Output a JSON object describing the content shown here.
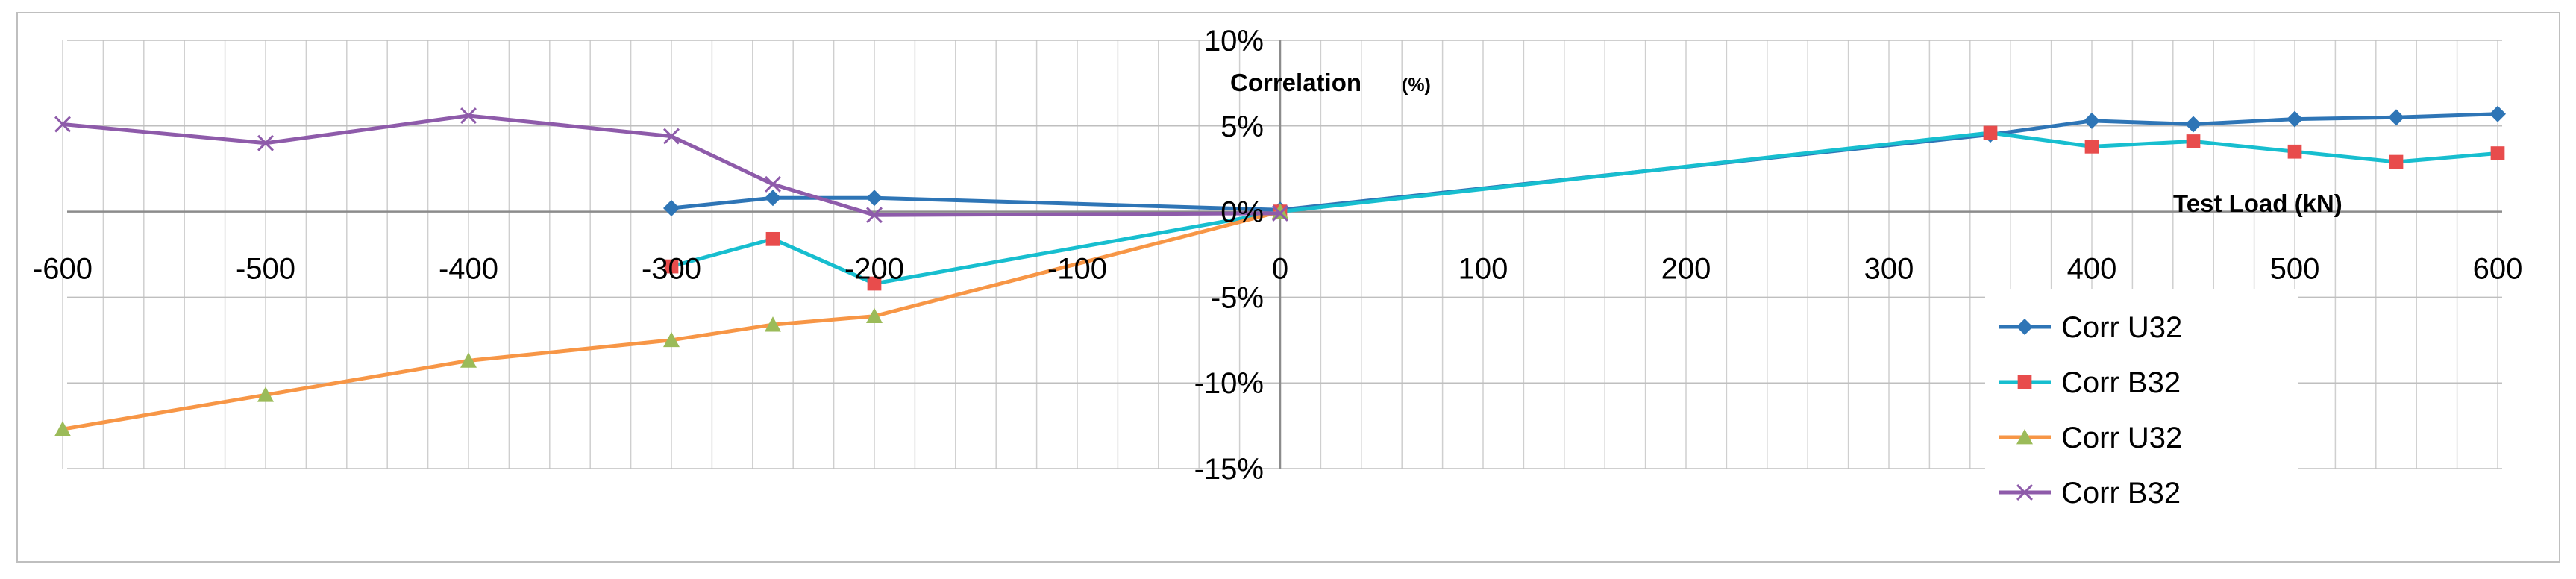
{
  "chart_data": {
    "type": "line",
    "x_axis_title": "Test Load (kN)",
    "y_axis_title": "Correlation",
    "y_axis_unit": "(%)",
    "xlim": [
      -600,
      600
    ],
    "ylim": [
      -15,
      10
    ],
    "x_ticks": [
      -600,
      -500,
      -400,
      -300,
      -200,
      -100,
      0,
      100,
      200,
      300,
      400,
      500,
      600
    ],
    "x_tick_labels": [
      "-600",
      "-500",
      "-400",
      "-300",
      "-200",
      "-100",
      "0",
      "100",
      "200",
      "300",
      "400",
      "500",
      "600"
    ],
    "y_ticks": [
      10,
      5,
      0,
      -5,
      -10,
      -15
    ],
    "y_tick_labels": [
      "10%",
      "5%",
      "0%",
      "-5%",
      "-10%",
      "-15%"
    ],
    "grid": {
      "major_x_step": 20,
      "horizontal": true
    },
    "legend_position": "bottom-right",
    "series": [
      {
        "name": "Corr U32",
        "color": "#2E75B6",
        "marker": "diamond",
        "points": [
          [
            -300,
            0.2
          ],
          [
            -250,
            0.8
          ],
          [
            -200,
            0.8
          ],
          [
            0,
            0.1
          ],
          [
            350,
            4.5
          ],
          [
            400,
            5.3
          ],
          [
            450,
            5.1
          ],
          [
            500,
            5.4
          ],
          [
            550,
            5.5
          ],
          [
            600,
            5.7
          ]
        ]
      },
      {
        "name": "Corr B32",
        "color": "#17BECF",
        "marker_color": "#E84C4C",
        "marker": "square",
        "points": [
          [
            -300,
            -3.2
          ],
          [
            -250,
            -1.6
          ],
          [
            -200,
            -4.2
          ],
          [
            0,
            0.0
          ],
          [
            350,
            4.6
          ],
          [
            400,
            3.8
          ],
          [
            450,
            4.1
          ],
          [
            500,
            3.5
          ],
          [
            550,
            2.9
          ],
          [
            600,
            3.4
          ]
        ]
      },
      {
        "name": "Corr U32",
        "color": "#F79646",
        "marker_color": "#9BBB59",
        "marker": "triangle",
        "points": [
          [
            -600,
            -12.7
          ],
          [
            -500,
            -10.7
          ],
          [
            -400,
            -8.7
          ],
          [
            -300,
            -7.5
          ],
          [
            -250,
            -6.6
          ],
          [
            -200,
            -6.1
          ],
          [
            0,
            0.0
          ]
        ]
      },
      {
        "name": "Corr B32",
        "color": "#8E5BAA",
        "marker": "x",
        "points": [
          [
            -600,
            5.1
          ],
          [
            -500,
            4.0
          ],
          [
            -400,
            5.6
          ],
          [
            -300,
            4.4
          ],
          [
            -250,
            1.6
          ],
          [
            -200,
            -0.2
          ],
          [
            0,
            -0.1
          ]
        ]
      }
    ]
  }
}
